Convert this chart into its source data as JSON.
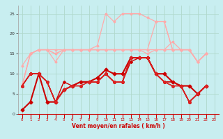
{
  "xlabel": "Vent moyen/en rafales ( km/h )",
  "xlim": [
    -0.5,
    23.5
  ],
  "ylim": [
    0,
    27
  ],
  "yticks": [
    0,
    5,
    10,
    15,
    20,
    25
  ],
  "xticks": [
    0,
    1,
    2,
    3,
    4,
    5,
    6,
    7,
    8,
    9,
    10,
    11,
    12,
    13,
    14,
    15,
    16,
    17,
    18,
    19,
    20,
    21,
    22,
    23
  ],
  "bg_color": "#c8eef0",
  "grid_color": "#b0d8cc",
  "series": [
    {
      "y": [
        12,
        15,
        16,
        16,
        13,
        16,
        16,
        16,
        16,
        16,
        16,
        16,
        16,
        16,
        16,
        15,
        16,
        16,
        18,
        16,
        16,
        13,
        15
      ],
      "color": "#ffaaaa",
      "lw": 0.9,
      "marker": "D",
      "ms": 1.5,
      "alpha": 1.0
    },
    {
      "y": [
        7,
        15,
        16,
        16,
        16,
        16,
        16,
        16,
        16,
        16,
        16,
        16,
        16,
        16,
        16,
        16,
        16,
        16,
        16,
        16,
        16,
        13,
        15
      ],
      "color": "#ffaaaa",
      "lw": 0.9,
      "marker": "D",
      "ms": 1.5,
      "alpha": 1.0
    },
    {
      "y": [
        7,
        15,
        16,
        16,
        15,
        16,
        16,
        16,
        16,
        17,
        25,
        23,
        25,
        25,
        25,
        24,
        23,
        23,
        16,
        16,
        16,
        13,
        15
      ],
      "color": "#ffaaaa",
      "lw": 0.9,
      "marker": "D",
      "ms": 1.5,
      "alpha": 1.0
    },
    {
      "y": [
        7,
        15,
        16,
        16,
        15,
        16,
        16,
        16,
        16,
        16,
        16,
        16,
        16,
        16,
        16,
        16,
        23,
        23,
        16,
        16,
        16,
        13,
        15
      ],
      "color": "#ffaaaa",
      "lw": 0.9,
      "marker": "D",
      "ms": 1.5,
      "alpha": 1.0
    },
    {
      "y": [
        1,
        3,
        10,
        3,
        3,
        6,
        7,
        8,
        8,
        9,
        11,
        10,
        10,
        14,
        14,
        14,
        10,
        10,
        8,
        7,
        7,
        5,
        7
      ],
      "color": "#cc0000",
      "lw": 1.5,
      "marker": "D",
      "ms": 2.5,
      "alpha": 1.0
    },
    {
      "y": [
        7,
        10,
        10,
        8,
        3,
        8,
        7,
        8,
        8,
        8,
        10,
        8,
        8,
        14,
        14,
        14,
        10,
        8,
        8,
        7,
        3,
        5,
        7
      ],
      "color": "#cc0000",
      "lw": 1.0,
      "marker": "D",
      "ms": 2.0,
      "alpha": 1.0
    },
    {
      "y": [
        7,
        10,
        10,
        8,
        3,
        6,
        7,
        8,
        8,
        8,
        10,
        8,
        8,
        14,
        14,
        14,
        10,
        8,
        8,
        7,
        3,
        5,
        7
      ],
      "color": "#cc0000",
      "lw": 1.0,
      "marker": "D",
      "ms": 2.0,
      "alpha": 1.0
    },
    {
      "y": [
        7,
        10,
        10,
        8,
        3,
        6,
        7,
        7,
        8,
        8,
        10,
        8,
        8,
        13,
        14,
        14,
        10,
        8,
        7,
        7,
        3,
        5,
        7
      ],
      "color": "#cc0000",
      "lw": 1.0,
      "marker": "D",
      "ms": 2.0,
      "alpha": 1.0
    },
    {
      "y": [
        7,
        10,
        10,
        8,
        3,
        6,
        7,
        7,
        8,
        8,
        10,
        8,
        8,
        14,
        14,
        14,
        10,
        8,
        7,
        7,
        3,
        5,
        7
      ],
      "color": "#dd2222",
      "lw": 1.0,
      "marker": "D",
      "ms": 2.0,
      "alpha": 1.0
    }
  ]
}
